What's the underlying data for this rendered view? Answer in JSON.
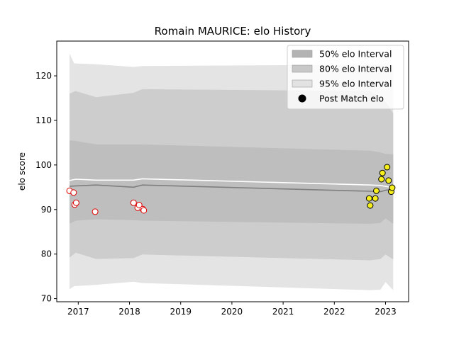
{
  "chart_data": {
    "type": "area",
    "title": "Romain MAURICE: elo History",
    "xlabel": "",
    "ylabel": "elo score",
    "xlim": [
      2016.58,
      2023.45
    ],
    "ylim": [
      69.3,
      127.8
    ],
    "x_ticks": [
      2017,
      2018,
      2019,
      2020,
      2021,
      2022,
      2023
    ],
    "x_tick_labels": [
      "2017",
      "2018",
      "2019",
      "2020",
      "2021",
      "2022",
      "2023"
    ],
    "y_ticks": [
      70,
      80,
      90,
      100,
      110,
      120
    ],
    "y_tick_labels": [
      "70",
      "80",
      "90",
      "100",
      "110",
      "120"
    ],
    "grid": false,
    "legend_position": "top-right",
    "legend": [
      {
        "label": "50% elo Interval",
        "kind": "band",
        "color": "#b3b3b3"
      },
      {
        "label": "80% elo Interval",
        "kind": "band",
        "color": "#c8c8c8"
      },
      {
        "label": "95% elo Interval",
        "kind": "band",
        "color": "#e2e2e2"
      },
      {
        "label": "Post Match elo",
        "kind": "marker",
        "color": "#000000"
      }
    ],
    "bands": [
      {
        "name": "95% elo Interval",
        "color": "#e4e4e4",
        "x": [
          2016.83,
          2016.92,
          2017.35,
          2018.08,
          2018.25,
          2022.7,
          2022.9,
          2023.0,
          2023.15
        ],
        "upper": [
          125.0,
          122.8,
          122.6,
          122.0,
          122.2,
          122.5,
          122.5,
          122.6,
          122.4
        ],
        "lower": [
          72.1,
          72.8,
          73.1,
          73.8,
          73.5,
          71.9,
          72.0,
          73.7,
          71.9
        ]
      },
      {
        "name": "80% elo Interval",
        "color": "#cdcdcd",
        "x": [
          2016.83,
          2016.95,
          2017.35,
          2018.08,
          2018.25,
          2022.7,
          2022.9,
          2023.0,
          2023.15
        ],
        "upper": [
          116.0,
          116.6,
          115.2,
          116.2,
          117.0,
          116.6,
          115.2,
          114.2,
          111.6
        ],
        "lower": [
          79.2,
          80.3,
          78.9,
          79.1,
          79.9,
          78.6,
          78.9,
          79.9,
          78.8
        ]
      },
      {
        "name": "50% elo Interval",
        "color": "#bebebe",
        "x": [
          2016.83,
          2016.95,
          2017.35,
          2018.08,
          2018.25,
          2022.7,
          2022.9,
          2023.0,
          2023.15
        ],
        "upper": [
          105.5,
          105.4,
          104.6,
          104.6,
          104.6,
          103.2,
          102.8,
          102.5,
          102.4
        ],
        "lower": [
          86.8,
          87.5,
          87.8,
          87.6,
          87.5,
          86.8,
          87.0,
          88.0,
          86.8
        ]
      }
    ],
    "lines": [
      {
        "name": "mean",
        "color": "#7f7f7f",
        "x": [
          2016.83,
          2016.95,
          2017.35,
          2018.08,
          2018.25,
          2022.7,
          2022.9,
          2023.0,
          2023.15
        ],
        "y": [
          95.2,
          95.3,
          95.5,
          95.0,
          95.5,
          94.1,
          94.0,
          94.3,
          94.6
        ]
      },
      {
        "name": "median",
        "color": "#ffffff",
        "x": [
          2016.83,
          2016.95,
          2017.35,
          2018.08,
          2018.25,
          2022.7,
          2022.9,
          2023.0,
          2023.15
        ],
        "y": [
          96.5,
          96.8,
          96.6,
          96.6,
          96.9,
          95.5,
          95.4,
          95.2,
          94.9
        ]
      }
    ],
    "points": [
      {
        "x": 2016.83,
        "y": 94.2,
        "fill": "#ffffff",
        "edge": "#dd0000"
      },
      {
        "x": 2016.91,
        "y": 93.8,
        "fill": "#ffffff",
        "edge": "#dd0000"
      },
      {
        "x": 2016.93,
        "y": 91.1,
        "fill": "#ffffff",
        "edge": "#dd0000"
      },
      {
        "x": 2016.96,
        "y": 91.5,
        "fill": "#ffffff",
        "edge": "#dd0000"
      },
      {
        "x": 2017.33,
        "y": 89.5,
        "fill": "#ffffff",
        "edge": "#dd0000"
      },
      {
        "x": 2018.08,
        "y": 91.5,
        "fill": "#ffffff",
        "edge": "#dd0000"
      },
      {
        "x": 2018.16,
        "y": 90.4,
        "fill": "#ffffff",
        "edge": "#dd0000"
      },
      {
        "x": 2018.19,
        "y": 91.0,
        "fill": "#ffffff",
        "edge": "#dd0000"
      },
      {
        "x": 2018.26,
        "y": 90.1,
        "fill": "#ffffff",
        "edge": "#dd0000"
      },
      {
        "x": 2018.28,
        "y": 89.8,
        "fill": "#ffffff",
        "edge": "#dd0000"
      },
      {
        "x": 2022.68,
        "y": 92.5,
        "fill": "#f5ee1c",
        "edge": "#000000"
      },
      {
        "x": 2022.7,
        "y": 90.9,
        "fill": "#f5ee1c",
        "edge": "#000000"
      },
      {
        "x": 2022.8,
        "y": 92.5,
        "fill": "#f5ee1c",
        "edge": "#000000"
      },
      {
        "x": 2022.82,
        "y": 94.2,
        "fill": "#f5ee1c",
        "edge": "#000000"
      },
      {
        "x": 2022.92,
        "y": 96.8,
        "fill": "#f5ee1c",
        "edge": "#000000"
      },
      {
        "x": 2022.94,
        "y": 98.2,
        "fill": "#f5ee1c",
        "edge": "#000000"
      },
      {
        "x": 2023.03,
        "y": 99.5,
        "fill": "#f5ee1c",
        "edge": "#000000"
      },
      {
        "x": 2023.06,
        "y": 96.5,
        "fill": "#f5ee1c",
        "edge": "#000000"
      },
      {
        "x": 2023.11,
        "y": 94.0,
        "fill": "#f5ee1c",
        "edge": "#000000"
      },
      {
        "x": 2023.13,
        "y": 94.9,
        "fill": "#f5ee1c",
        "edge": "#000000"
      }
    ]
  }
}
